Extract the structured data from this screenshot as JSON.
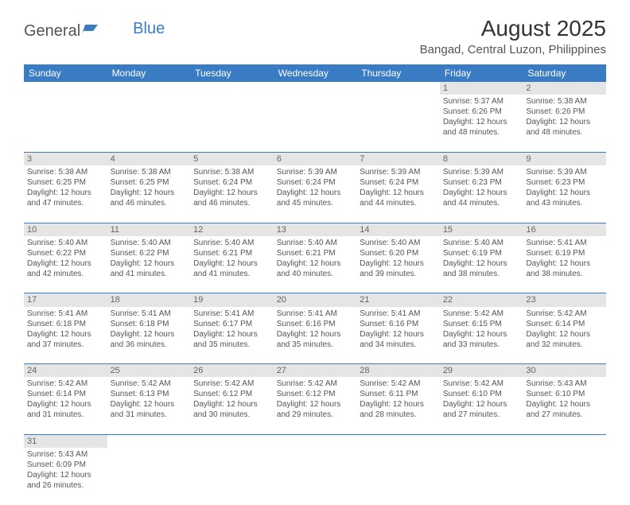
{
  "logo": {
    "general": "General",
    "blue": "Blue"
  },
  "title": "August 2025",
  "location": "Bangad, Central Luzon, Philippines",
  "colors": {
    "header_bg": "#3a7cc4",
    "header_text": "#ffffff",
    "daynum_bg": "#e5e5e5",
    "row_border": "#3a7cc4",
    "body_text": "#555555"
  },
  "weekdays": [
    "Sunday",
    "Monday",
    "Tuesday",
    "Wednesday",
    "Thursday",
    "Friday",
    "Saturday"
  ],
  "weeks": [
    [
      null,
      null,
      null,
      null,
      null,
      {
        "n": "1",
        "sr": "5:37 AM",
        "ss": "6:26 PM",
        "dl": "12 hours and 48 minutes."
      },
      {
        "n": "2",
        "sr": "5:38 AM",
        "ss": "6:26 PM",
        "dl": "12 hours and 48 minutes."
      }
    ],
    [
      {
        "n": "3",
        "sr": "5:38 AM",
        "ss": "6:25 PM",
        "dl": "12 hours and 47 minutes."
      },
      {
        "n": "4",
        "sr": "5:38 AM",
        "ss": "6:25 PM",
        "dl": "12 hours and 46 minutes."
      },
      {
        "n": "5",
        "sr": "5:38 AM",
        "ss": "6:24 PM",
        "dl": "12 hours and 46 minutes."
      },
      {
        "n": "6",
        "sr": "5:39 AM",
        "ss": "6:24 PM",
        "dl": "12 hours and 45 minutes."
      },
      {
        "n": "7",
        "sr": "5:39 AM",
        "ss": "6:24 PM",
        "dl": "12 hours and 44 minutes."
      },
      {
        "n": "8",
        "sr": "5:39 AM",
        "ss": "6:23 PM",
        "dl": "12 hours and 44 minutes."
      },
      {
        "n": "9",
        "sr": "5:39 AM",
        "ss": "6:23 PM",
        "dl": "12 hours and 43 minutes."
      }
    ],
    [
      {
        "n": "10",
        "sr": "5:40 AM",
        "ss": "6:22 PM",
        "dl": "12 hours and 42 minutes."
      },
      {
        "n": "11",
        "sr": "5:40 AM",
        "ss": "6:22 PM",
        "dl": "12 hours and 41 minutes."
      },
      {
        "n": "12",
        "sr": "5:40 AM",
        "ss": "6:21 PM",
        "dl": "12 hours and 41 minutes."
      },
      {
        "n": "13",
        "sr": "5:40 AM",
        "ss": "6:21 PM",
        "dl": "12 hours and 40 minutes."
      },
      {
        "n": "14",
        "sr": "5:40 AM",
        "ss": "6:20 PM",
        "dl": "12 hours and 39 minutes."
      },
      {
        "n": "15",
        "sr": "5:40 AM",
        "ss": "6:19 PM",
        "dl": "12 hours and 38 minutes."
      },
      {
        "n": "16",
        "sr": "5:41 AM",
        "ss": "6:19 PM",
        "dl": "12 hours and 38 minutes."
      }
    ],
    [
      {
        "n": "17",
        "sr": "5:41 AM",
        "ss": "6:18 PM",
        "dl": "12 hours and 37 minutes."
      },
      {
        "n": "18",
        "sr": "5:41 AM",
        "ss": "6:18 PM",
        "dl": "12 hours and 36 minutes."
      },
      {
        "n": "19",
        "sr": "5:41 AM",
        "ss": "6:17 PM",
        "dl": "12 hours and 35 minutes."
      },
      {
        "n": "20",
        "sr": "5:41 AM",
        "ss": "6:16 PM",
        "dl": "12 hours and 35 minutes."
      },
      {
        "n": "21",
        "sr": "5:41 AM",
        "ss": "6:16 PM",
        "dl": "12 hours and 34 minutes."
      },
      {
        "n": "22",
        "sr": "5:42 AM",
        "ss": "6:15 PM",
        "dl": "12 hours and 33 minutes."
      },
      {
        "n": "23",
        "sr": "5:42 AM",
        "ss": "6:14 PM",
        "dl": "12 hours and 32 minutes."
      }
    ],
    [
      {
        "n": "24",
        "sr": "5:42 AM",
        "ss": "6:14 PM",
        "dl": "12 hours and 31 minutes."
      },
      {
        "n": "25",
        "sr": "5:42 AM",
        "ss": "6:13 PM",
        "dl": "12 hours and 31 minutes."
      },
      {
        "n": "26",
        "sr": "5:42 AM",
        "ss": "6:12 PM",
        "dl": "12 hours and 30 minutes."
      },
      {
        "n": "27",
        "sr": "5:42 AM",
        "ss": "6:12 PM",
        "dl": "12 hours and 29 minutes."
      },
      {
        "n": "28",
        "sr": "5:42 AM",
        "ss": "6:11 PM",
        "dl": "12 hours and 28 minutes."
      },
      {
        "n": "29",
        "sr": "5:42 AM",
        "ss": "6:10 PM",
        "dl": "12 hours and 27 minutes."
      },
      {
        "n": "30",
        "sr": "5:43 AM",
        "ss": "6:10 PM",
        "dl": "12 hours and 27 minutes."
      }
    ],
    [
      {
        "n": "31",
        "sr": "5:43 AM",
        "ss": "6:09 PM",
        "dl": "12 hours and 26 minutes."
      },
      null,
      null,
      null,
      null,
      null,
      null
    ]
  ],
  "labels": {
    "sunrise": "Sunrise:",
    "sunset": "Sunset:",
    "daylight": "Daylight:"
  }
}
